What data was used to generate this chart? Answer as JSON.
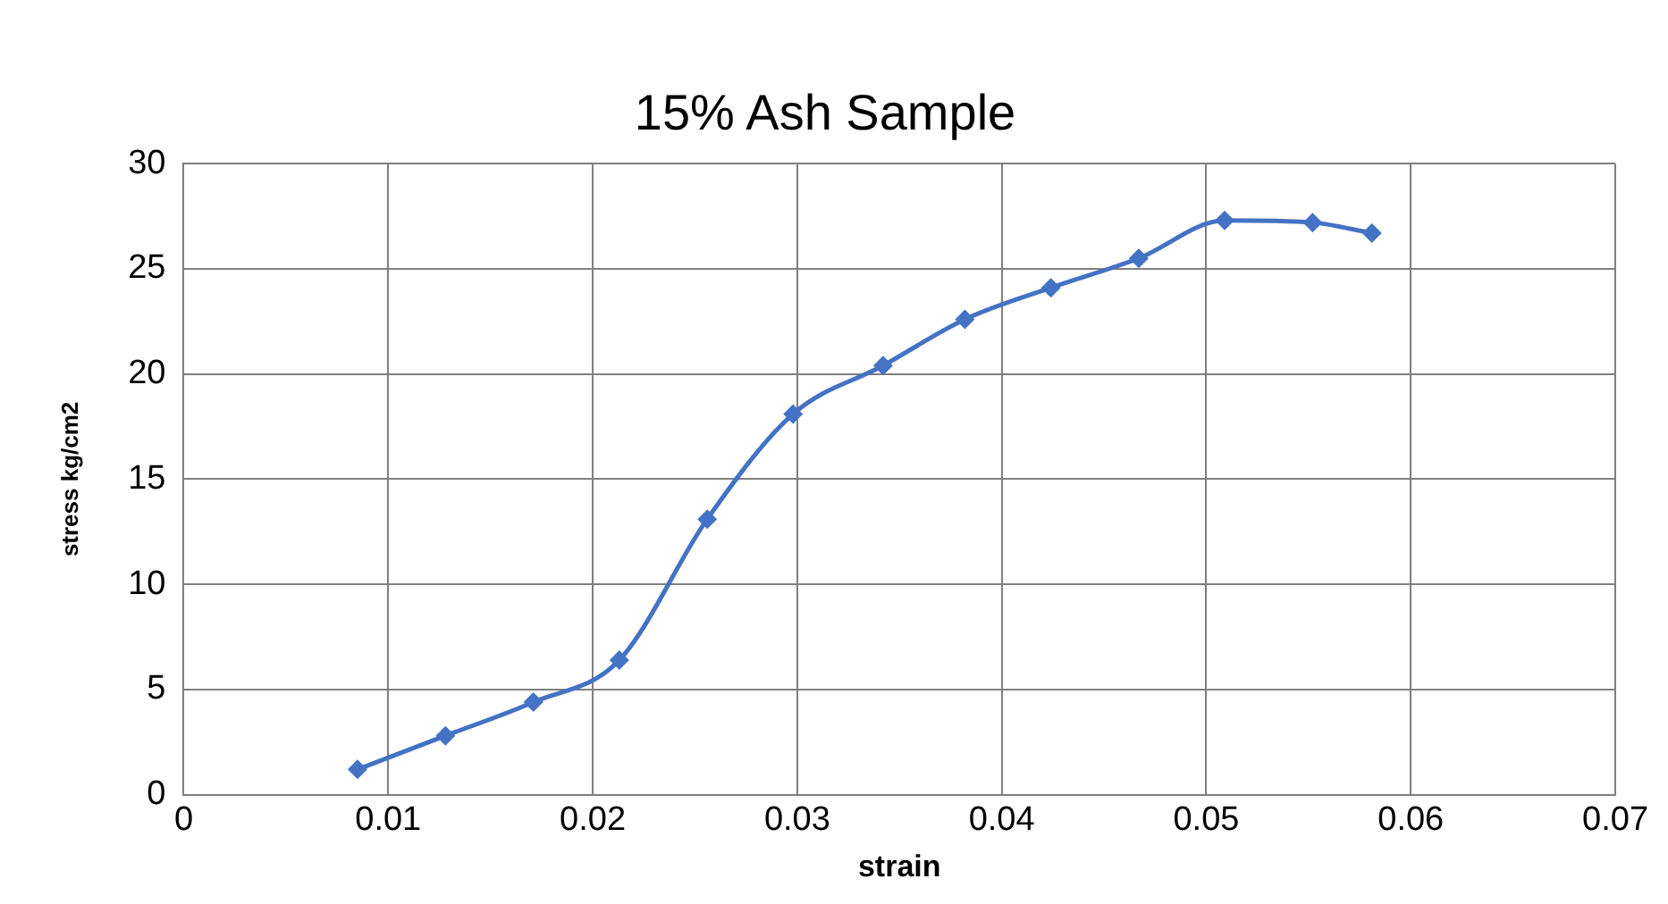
{
  "chart_data": {
    "type": "line",
    "title": "15% Ash Sample",
    "xlabel": "strain",
    "ylabel": "stress kg/cm2",
    "x": [
      0.0085,
      0.0128,
      0.0171,
      0.0213,
      0.0256,
      0.0298,
      0.0342,
      0.0382,
      0.0424,
      0.0467,
      0.0509,
      0.0552,
      0.0581
    ],
    "series": [
      {
        "color": "#4472c4",
        "values": [
          1.2,
          2.8,
          4.4,
          6.4,
          13.1,
          18.1,
          20.4,
          22.6,
          24.1,
          25.5,
          27.3,
          27.2,
          26.7
        ]
      }
    ],
    "xlim": [
      0,
      0.07
    ],
    "xticks": [
      0,
      0.01,
      0.02,
      0.03,
      0.04,
      0.05,
      0.06,
      0.07
    ],
    "ylim": [
      0,
      30
    ],
    "yticks": [
      0,
      5,
      10,
      15,
      20,
      25,
      30
    ],
    "grid": true,
    "legend": false,
    "marker": "diamond",
    "line_style": "solid"
  }
}
